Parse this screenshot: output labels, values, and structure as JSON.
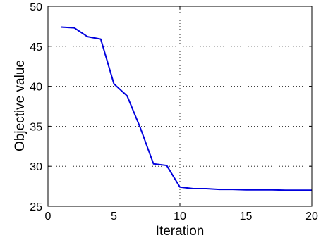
{
  "chart_data": {
    "type": "line",
    "title": "",
    "xlabel": "Iteration",
    "ylabel": "Objective value",
    "xlim": [
      0,
      20
    ],
    "ylim": [
      25,
      50
    ],
    "xticks": [
      0,
      5,
      10,
      15,
      20
    ],
    "yticks": [
      25,
      30,
      35,
      40,
      45,
      50
    ],
    "grid": true,
    "grid_style": "dotted",
    "series": [
      {
        "color": "#0000dd",
        "x": [
          1,
          2,
          3,
          4,
          5,
          6,
          7,
          8,
          9,
          10,
          11,
          12,
          13,
          14,
          15,
          16,
          17,
          18,
          19,
          20
        ],
        "y": [
          47.4,
          47.3,
          46.2,
          45.9,
          40.3,
          38.8,
          34.8,
          30.3,
          30.1,
          27.4,
          27.2,
          27.2,
          27.1,
          27.1,
          27.05,
          27.05,
          27.05,
          27.0,
          27.0,
          27.0
        ]
      }
    ]
  }
}
